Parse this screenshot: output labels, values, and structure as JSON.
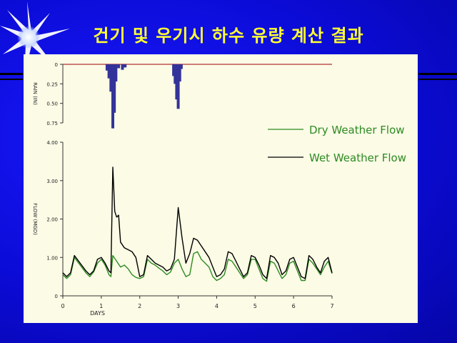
{
  "slide": {
    "title": "건기 및 우기시 하수 유량 계산 결과"
  },
  "chart_data": {
    "type": "line",
    "xlabel": "DAYS",
    "x_ticks": [
      "0",
      "1",
      "2",
      "3",
      "4",
      "5",
      "6",
      "7"
    ],
    "xlim": [
      0,
      7
    ],
    "rain_panel": {
      "ylabel": "RAIN (IN)",
      "y_ticks": [
        "0",
        "0.25",
        "0.50",
        "0.75"
      ],
      "ylim": [
        0,
        0.75
      ],
      "inverted": true,
      "bars": [
        {
          "x": 1.15,
          "value": 0.08
        },
        {
          "x": 1.2,
          "value": 0.18
        },
        {
          "x": 1.25,
          "value": 0.35
        },
        {
          "x": 1.3,
          "value": 0.82
        },
        {
          "x": 1.34,
          "value": 0.62
        },
        {
          "x": 1.38,
          "value": 0.22
        },
        {
          "x": 1.45,
          "value": 0.05
        },
        {
          "x": 1.55,
          "value": 0.07
        },
        {
          "x": 1.62,
          "value": 0.04
        },
        {
          "x": 2.88,
          "value": 0.15
        },
        {
          "x": 2.92,
          "value": 0.25
        },
        {
          "x": 2.96,
          "value": 0.45
        },
        {
          "x": 3.0,
          "value": 0.57
        },
        {
          "x": 3.04,
          "value": 0.22
        },
        {
          "x": 3.08,
          "value": 0.06
        }
      ]
    },
    "flow_panel": {
      "ylabel": "FLOW (MGD)",
      "y_ticks": [
        "0",
        "1.00",
        "2.00",
        "3.00",
        "4.00"
      ],
      "ylim": [
        0,
        4
      ]
    },
    "series": [
      {
        "name": "Dry Weather Flow",
        "color": "#2e8b22",
        "points": [
          [
            0,
            0.55
          ],
          [
            0.1,
            0.45
          ],
          [
            0.2,
            0.55
          ],
          [
            0.3,
            1.0
          ],
          [
            0.45,
            0.8
          ],
          [
            0.6,
            0.6
          ],
          [
            0.7,
            0.5
          ],
          [
            0.8,
            0.62
          ],
          [
            0.9,
            0.85
          ],
          [
            1.0,
            0.95
          ],
          [
            1.1,
            0.8
          ],
          [
            1.2,
            0.55
          ],
          [
            1.25,
            0.5
          ],
          [
            1.3,
            1.05
          ],
          [
            1.4,
            0.9
          ],
          [
            1.5,
            0.75
          ],
          [
            1.6,
            0.8
          ],
          [
            1.7,
            0.7
          ],
          [
            1.8,
            0.55
          ],
          [
            1.9,
            0.48
          ],
          [
            2.0,
            0.45
          ],
          [
            2.1,
            0.5
          ],
          [
            2.2,
            0.95
          ],
          [
            2.3,
            0.85
          ],
          [
            2.4,
            0.8
          ],
          [
            2.5,
            0.72
          ],
          [
            2.6,
            0.65
          ],
          [
            2.7,
            0.55
          ],
          [
            2.8,
            0.62
          ],
          [
            2.9,
            0.85
          ],
          [
            3.0,
            0.95
          ],
          [
            3.1,
            0.7
          ],
          [
            3.2,
            0.5
          ],
          [
            3.3,
            0.55
          ],
          [
            3.4,
            1.1
          ],
          [
            3.5,
            1.15
          ],
          [
            3.6,
            0.95
          ],
          [
            3.7,
            0.85
          ],
          [
            3.8,
            0.75
          ],
          [
            3.9,
            0.5
          ],
          [
            4.0,
            0.4
          ],
          [
            4.1,
            0.45
          ],
          [
            4.2,
            0.55
          ],
          [
            4.3,
            0.95
          ],
          [
            4.4,
            0.9
          ],
          [
            4.5,
            0.75
          ],
          [
            4.6,
            0.6
          ],
          [
            4.7,
            0.45
          ],
          [
            4.8,
            0.55
          ],
          [
            4.9,
            0.95
          ],
          [
            5.0,
            0.95
          ],
          [
            5.1,
            0.7
          ],
          [
            5.2,
            0.45
          ],
          [
            5.3,
            0.38
          ],
          [
            5.4,
            0.9
          ],
          [
            5.5,
            0.85
          ],
          [
            5.6,
            0.65
          ],
          [
            5.7,
            0.45
          ],
          [
            5.8,
            0.55
          ],
          [
            5.9,
            0.85
          ],
          [
            6.0,
            0.9
          ],
          [
            6.1,
            0.65
          ],
          [
            6.2,
            0.4
          ],
          [
            6.3,
            0.4
          ],
          [
            6.4,
            0.95
          ],
          [
            6.5,
            0.85
          ],
          [
            6.6,
            0.7
          ],
          [
            6.7,
            0.55
          ],
          [
            6.8,
            0.75
          ],
          [
            6.9,
            0.9
          ],
          [
            7.0,
            0.58
          ]
        ]
      },
      {
        "name": "Wet Weather Flow",
        "color": "#000000",
        "points": [
          [
            0,
            0.6
          ],
          [
            0.1,
            0.5
          ],
          [
            0.2,
            0.6
          ],
          [
            0.3,
            1.05
          ],
          [
            0.45,
            0.85
          ],
          [
            0.6,
            0.65
          ],
          [
            0.7,
            0.55
          ],
          [
            0.8,
            0.65
          ],
          [
            0.9,
            0.95
          ],
          [
            1.0,
            1.0
          ],
          [
            1.1,
            0.85
          ],
          [
            1.2,
            0.65
          ],
          [
            1.25,
            0.6
          ],
          [
            1.3,
            3.35
          ],
          [
            1.35,
            2.2
          ],
          [
            1.4,
            2.05
          ],
          [
            1.45,
            2.1
          ],
          [
            1.5,
            1.4
          ],
          [
            1.6,
            1.25
          ],
          [
            1.7,
            1.2
          ],
          [
            1.8,
            1.15
          ],
          [
            1.9,
            1.0
          ],
          [
            2.0,
            0.5
          ],
          [
            2.1,
            0.55
          ],
          [
            2.2,
            1.05
          ],
          [
            2.3,
            0.95
          ],
          [
            2.4,
            0.85
          ],
          [
            2.5,
            0.8
          ],
          [
            2.6,
            0.75
          ],
          [
            2.7,
            0.65
          ],
          [
            2.8,
            0.7
          ],
          [
            2.9,
            0.95
          ],
          [
            3.0,
            2.3
          ],
          [
            3.1,
            1.5
          ],
          [
            3.2,
            0.85
          ],
          [
            3.3,
            1.1
          ],
          [
            3.4,
            1.5
          ],
          [
            3.5,
            1.45
          ],
          [
            3.6,
            1.3
          ],
          [
            3.7,
            1.15
          ],
          [
            3.8,
            1.0
          ],
          [
            3.9,
            0.75
          ],
          [
            4.0,
            0.5
          ],
          [
            4.1,
            0.55
          ],
          [
            4.2,
            0.7
          ],
          [
            4.3,
            1.15
          ],
          [
            4.4,
            1.1
          ],
          [
            4.5,
            0.9
          ],
          [
            4.6,
            0.7
          ],
          [
            4.7,
            0.5
          ],
          [
            4.8,
            0.6
          ],
          [
            4.9,
            1.05
          ],
          [
            5.0,
            1.0
          ],
          [
            5.1,
            0.8
          ],
          [
            5.2,
            0.55
          ],
          [
            5.3,
            0.45
          ],
          [
            5.4,
            1.05
          ],
          [
            5.5,
            1.0
          ],
          [
            5.6,
            0.85
          ],
          [
            5.7,
            0.55
          ],
          [
            5.8,
            0.65
          ],
          [
            5.9,
            0.95
          ],
          [
            6.0,
            1.0
          ],
          [
            6.1,
            0.75
          ],
          [
            6.2,
            0.5
          ],
          [
            6.3,
            0.45
          ],
          [
            6.4,
            1.05
          ],
          [
            6.5,
            0.95
          ],
          [
            6.6,
            0.75
          ],
          [
            6.7,
            0.6
          ],
          [
            6.8,
            0.9
          ],
          [
            6.9,
            1.0
          ],
          [
            7.0,
            0.6
          ]
        ]
      }
    ],
    "legend": {
      "placement": "right",
      "entries": [
        "Dry Weather Flow",
        "Wet Weather Flow"
      ]
    },
    "grid": false
  }
}
